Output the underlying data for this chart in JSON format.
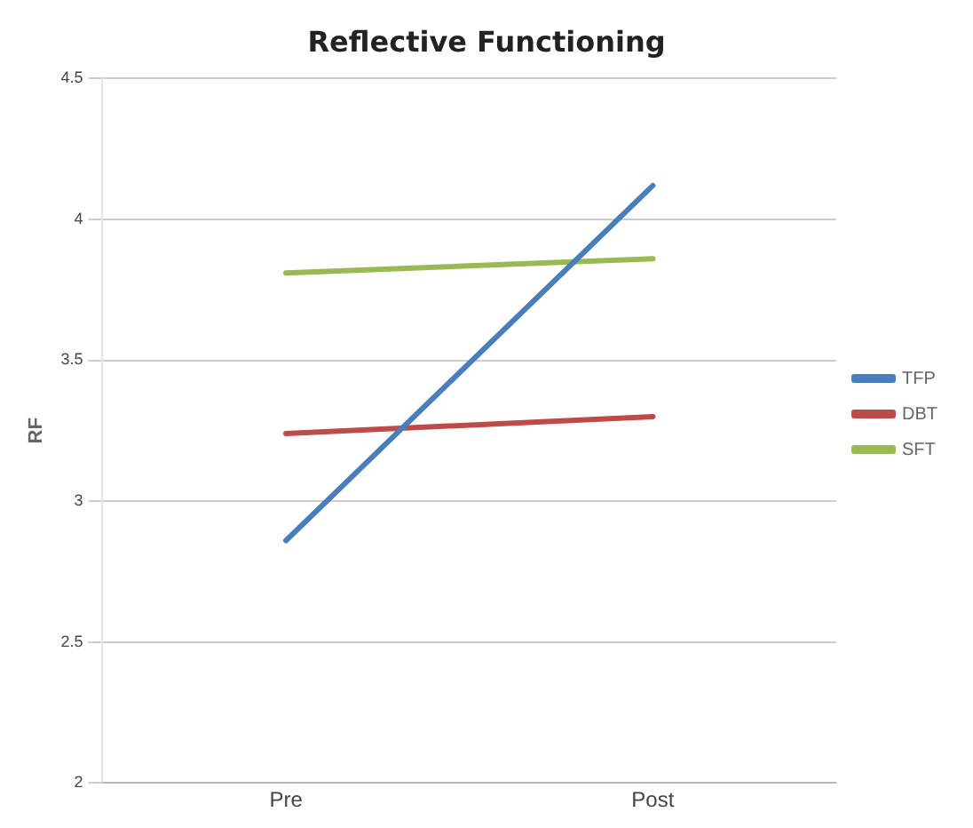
{
  "chart_data": {
    "type": "line",
    "title": "Reflective Functioning",
    "ylabel": "RF",
    "categories": [
      "Pre",
      "Post"
    ],
    "series": [
      {
        "name": "TFP",
        "color": "#4a7ebb",
        "values": [
          2.86,
          4.12
        ]
      },
      {
        "name": "DBT",
        "color": "#be4b48",
        "values": [
          3.24,
          3.3
        ]
      },
      {
        "name": "SFT",
        "color": "#98b954",
        "values": [
          3.81,
          3.86
        ]
      }
    ],
    "ylim": [
      2,
      4.5
    ],
    "yticks": [
      2,
      2.5,
      3,
      3.5,
      4,
      4.5
    ],
    "grid": "y",
    "legend": "right",
    "marker": "none"
  }
}
